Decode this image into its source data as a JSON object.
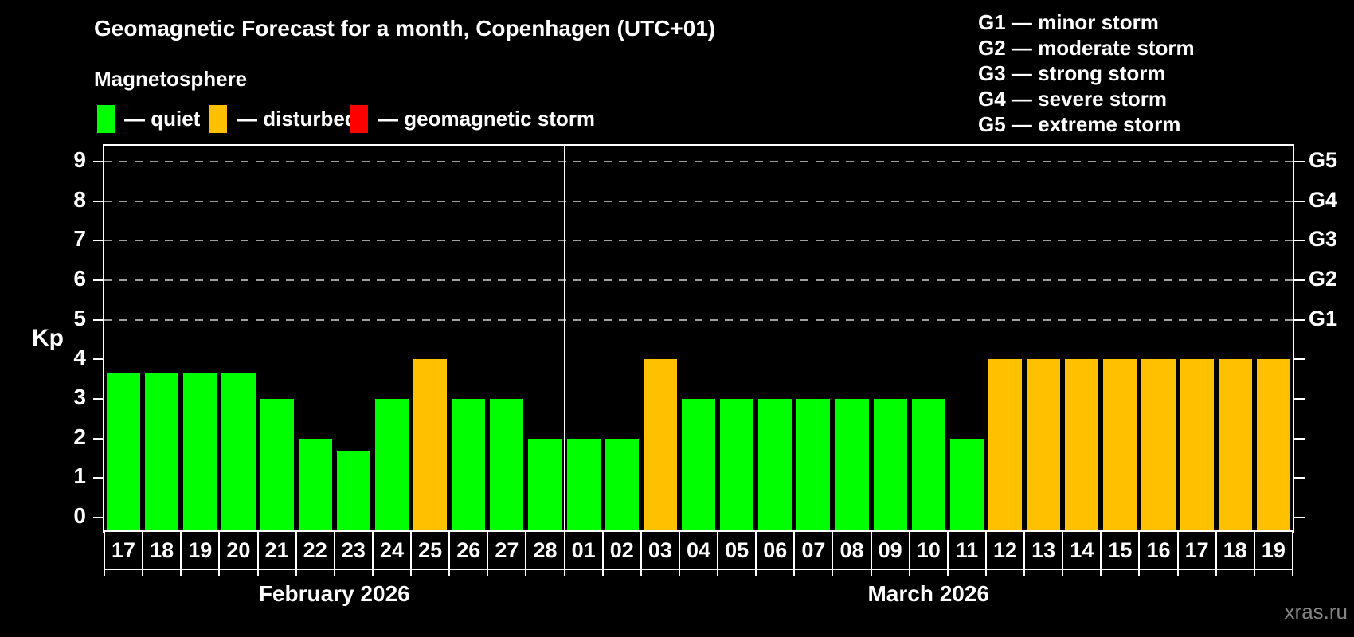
{
  "header": {
    "title": "Geomagnetic Forecast for a month, Copenhagen (UTC+01)",
    "subtitle": "Magnetosphere"
  },
  "legend": {
    "items": [
      {
        "key": "quiet",
        "label": "— quiet",
        "color": "#00ff00"
      },
      {
        "key": "disturbed",
        "label": "— disturbed",
        "color": "#ffc000"
      },
      {
        "key": "storm",
        "label": "— geomagnetic storm",
        "color": "#ff0000"
      }
    ]
  },
  "gscale_legend": [
    "G1 — minor storm",
    "G2 — moderate storm",
    "G3 — strong storm",
    "G4 — severe storm",
    "G5 — extreme storm"
  ],
  "watermark": "xras.ru",
  "chart_data": {
    "type": "bar",
    "title": "Geomagnetic Forecast for a month, Copenhagen (UTC+01)",
    "xlabel": "",
    "ylabel": "Kp",
    "ylim": [
      -0.36,
      9.4
    ],
    "yticks": [
      0,
      1,
      2,
      3,
      4,
      5,
      6,
      7,
      8,
      9
    ],
    "gridlines": [
      5,
      6,
      7,
      8,
      9
    ],
    "grid": "dashed-horizontal-at-G-levels",
    "legend_position": "top-left",
    "right_axis_labels": [
      {
        "kp": 5,
        "label": "G1"
      },
      {
        "kp": 6,
        "label": "G2"
      },
      {
        "kp": 7,
        "label": "G3"
      },
      {
        "kp": 8,
        "label": "G4"
      },
      {
        "kp": 9,
        "label": "G5"
      }
    ],
    "colors": {
      "quiet": "#00ff00",
      "disturbed": "#ffc000",
      "storm": "#ff0000"
    },
    "months": [
      {
        "label": "February 2026",
        "days": [
          {
            "day": "17",
            "kp": 3.67,
            "status": "quiet"
          },
          {
            "day": "18",
            "kp": 3.67,
            "status": "quiet"
          },
          {
            "day": "19",
            "kp": 3.67,
            "status": "quiet"
          },
          {
            "day": "20",
            "kp": 3.67,
            "status": "quiet"
          },
          {
            "day": "21",
            "kp": 3,
            "status": "quiet"
          },
          {
            "day": "22",
            "kp": 2,
            "status": "quiet"
          },
          {
            "day": "23",
            "kp": 1.67,
            "status": "quiet"
          },
          {
            "day": "24",
            "kp": 3,
            "status": "quiet"
          },
          {
            "day": "25",
            "kp": 4,
            "status": "disturbed"
          },
          {
            "day": "26",
            "kp": 3,
            "status": "quiet"
          },
          {
            "day": "27",
            "kp": 3,
            "status": "quiet"
          },
          {
            "day": "28",
            "kp": 2,
            "status": "quiet"
          }
        ]
      },
      {
        "label": "March 2026",
        "days": [
          {
            "day": "01",
            "kp": 2,
            "status": "quiet"
          },
          {
            "day": "02",
            "kp": 2,
            "status": "quiet"
          },
          {
            "day": "03",
            "kp": 4,
            "status": "disturbed"
          },
          {
            "day": "04",
            "kp": 3,
            "status": "quiet"
          },
          {
            "day": "05",
            "kp": 3,
            "status": "quiet"
          },
          {
            "day": "06",
            "kp": 3,
            "status": "quiet"
          },
          {
            "day": "07",
            "kp": 3,
            "status": "quiet"
          },
          {
            "day": "08",
            "kp": 3,
            "status": "quiet"
          },
          {
            "day": "09",
            "kp": 3,
            "status": "quiet"
          },
          {
            "day": "10",
            "kp": 3,
            "status": "quiet"
          },
          {
            "day": "11",
            "kp": 2,
            "status": "quiet"
          },
          {
            "day": "12",
            "kp": 4,
            "status": "disturbed"
          },
          {
            "day": "13",
            "kp": 4,
            "status": "disturbed"
          },
          {
            "day": "14",
            "kp": 4,
            "status": "disturbed"
          },
          {
            "day": "15",
            "kp": 4,
            "status": "disturbed"
          },
          {
            "day": "16",
            "kp": 4,
            "status": "disturbed"
          },
          {
            "day": "17",
            "kp": 4,
            "status": "disturbed"
          },
          {
            "day": "18",
            "kp": 4,
            "status": "disturbed"
          },
          {
            "day": "19",
            "kp": 4,
            "status": "disturbed"
          }
        ]
      }
    ]
  }
}
